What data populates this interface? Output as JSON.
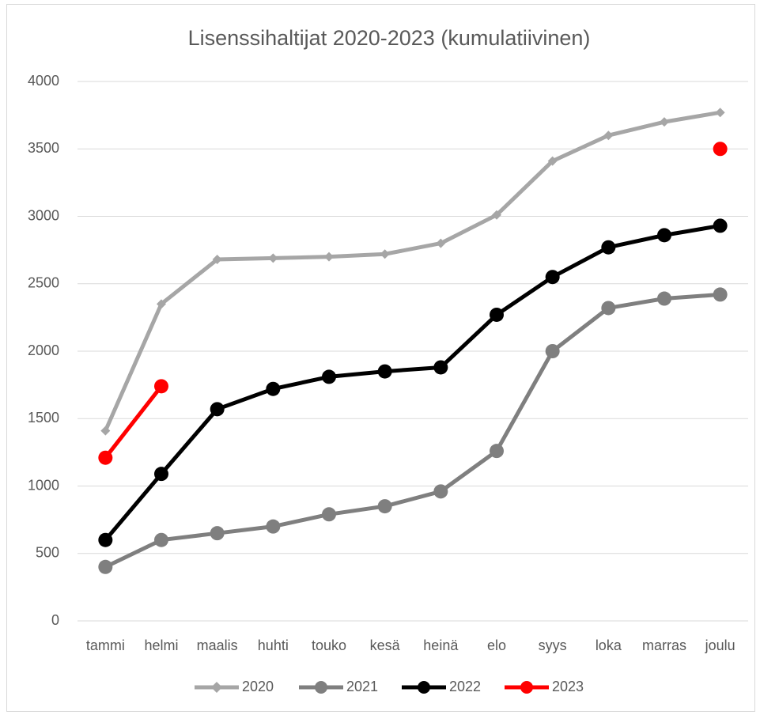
{
  "chart_data": {
    "type": "line",
    "title": "Lisenssihaltijat 2020-2023 (kumulatiivinen)",
    "categories": [
      "tammi",
      "helmi",
      "maalis",
      "huhti",
      "touko",
      "kesä",
      "heinä",
      "elo",
      "syys",
      "loka",
      "marras",
      "joulu"
    ],
    "series": [
      {
        "name": "2020",
        "color": "#a6a6a6",
        "marker": "diamond",
        "values": [
          1410,
          2350,
          2680,
          2690,
          2700,
          2720,
          2800,
          3010,
          3410,
          3600,
          3700,
          3770
        ]
      },
      {
        "name": "2021",
        "color": "#7f7f7f",
        "marker": "circle",
        "values": [
          400,
          600,
          650,
          700,
          790,
          850,
          960,
          1260,
          2000,
          2320,
          2390,
          2420
        ]
      },
      {
        "name": "2022",
        "color": "#000000",
        "marker": "circle",
        "values": [
          600,
          1090,
          1570,
          1720,
          1810,
          1850,
          1880,
          2270,
          2550,
          2770,
          2860,
          2930
        ]
      },
      {
        "name": "2023",
        "color": "#ff0000",
        "marker": "circle",
        "values": [
          1210,
          1740,
          null,
          null,
          null,
          null,
          null,
          null,
          null,
          null,
          null,
          3500
        ]
      }
    ],
    "ylim": [
      0,
      4000
    ],
    "yticks": [
      0,
      500,
      1000,
      1500,
      2000,
      2500,
      3000,
      3500,
      4000
    ],
    "grid": true,
    "legend": "bottom"
  }
}
